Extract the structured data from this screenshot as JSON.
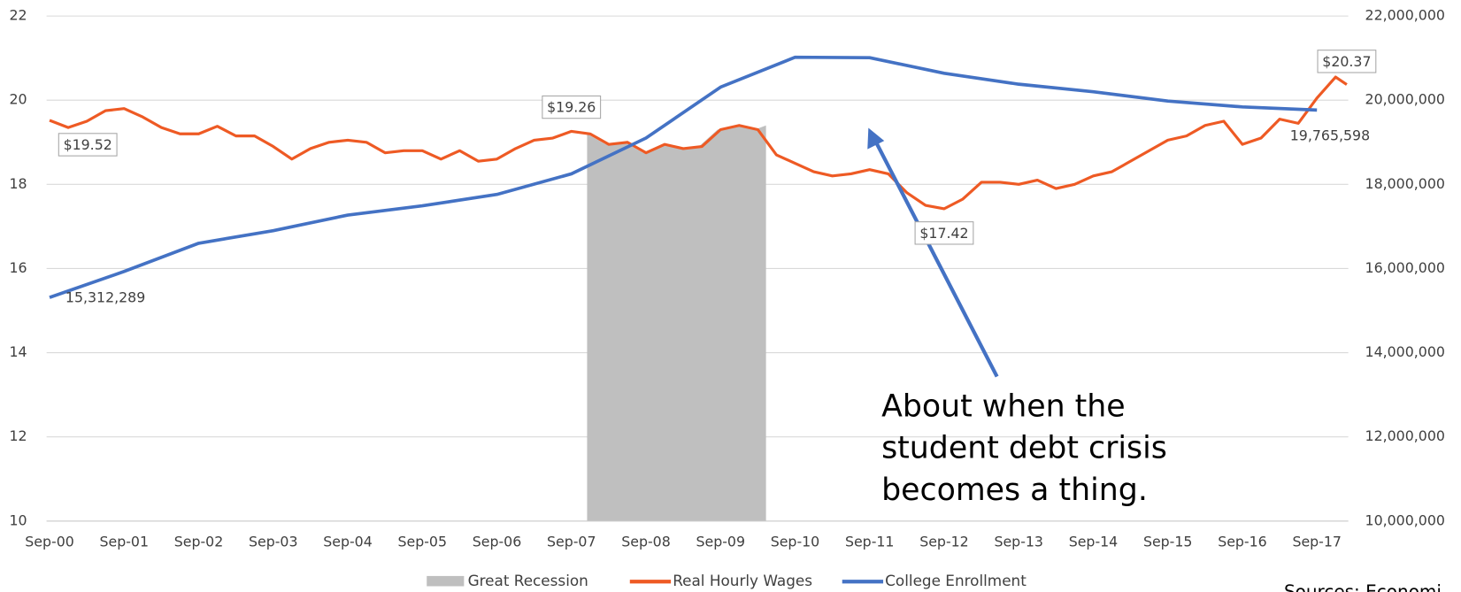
{
  "chart_data": {
    "type": "line",
    "xlim": [
      2000.71,
      2018.17
    ],
    "xticks": [
      {
        "value": 2000.75,
        "label": "Sep-00"
      },
      {
        "value": 2001.75,
        "label": "Sep-01"
      },
      {
        "value": 2002.75,
        "label": "Sep-02"
      },
      {
        "value": 2003.75,
        "label": "Sep-03"
      },
      {
        "value": 2004.75,
        "label": "Sep-04"
      },
      {
        "value": 2005.75,
        "label": "Sep-05"
      },
      {
        "value": 2006.75,
        "label": "Sep-06"
      },
      {
        "value": 2007.75,
        "label": "Sep-07"
      },
      {
        "value": 2008.75,
        "label": "Sep-08"
      },
      {
        "value": 2009.75,
        "label": "Sep-09"
      },
      {
        "value": 2010.75,
        "label": "Sep-10"
      },
      {
        "value": 2011.75,
        "label": "Sep-11"
      },
      {
        "value": 2012.75,
        "label": "Sep-12"
      },
      {
        "value": 2013.75,
        "label": "Sep-13"
      },
      {
        "value": 2014.75,
        "label": "Sep-14"
      },
      {
        "value": 2015.75,
        "label": "Sep-15"
      },
      {
        "value": 2016.75,
        "label": "Sep-16"
      },
      {
        "value": 2017.75,
        "label": "Sep-17"
      }
    ],
    "ylim": [
      10,
      22
    ],
    "yticks": [
      10,
      12,
      14,
      16,
      18,
      20,
      22
    ],
    "y2lim": [
      10000000,
      22000000
    ],
    "y2ticks": [
      {
        "value": 10000000,
        "label": "10,000,000"
      },
      {
        "value": 12000000,
        "label": "12,000,000"
      },
      {
        "value": 14000000,
        "label": "14,000,000"
      },
      {
        "value": 16000000,
        "label": "16,000,000"
      },
      {
        "value": 18000000,
        "label": "18,000,000"
      },
      {
        "value": 20000000,
        "label": "20,000,000"
      },
      {
        "value": 22000000,
        "label": "22,000,000"
      }
    ],
    "grid": true,
    "legend": "bottom",
    "series": [
      {
        "name": "Great Recession",
        "type": "area",
        "color": "#bfbfbf",
        "x": [
          2007.96,
          2008.21,
          2008.46,
          2008.71,
          2008.96,
          2009.21,
          2009.46,
          2009.71,
          2009.96,
          2010.21,
          2010.36
        ],
        "values": [
          19.2,
          18.95,
          19.0,
          18.75,
          18.95,
          18.85,
          18.9,
          19.3,
          19.4,
          19.3,
          19.4
        ]
      },
      {
        "name": "Real Hourly Wages",
        "type": "line",
        "color": "#ee5a24",
        "x": [
          2000.75,
          2001.0,
          2001.25,
          2001.5,
          2001.75,
          2002.0,
          2002.25,
          2002.5,
          2002.75,
          2003.0,
          2003.25,
          2003.5,
          2003.75,
          2004.0,
          2004.25,
          2004.5,
          2004.75,
          2005.0,
          2005.25,
          2005.5,
          2005.75,
          2006.0,
          2006.25,
          2006.5,
          2006.75,
          2007.0,
          2007.25,
          2007.5,
          2007.75,
          2008.0,
          2008.25,
          2008.5,
          2008.75,
          2009.0,
          2009.25,
          2009.5,
          2009.75,
          2010.0,
          2010.25,
          2010.5,
          2010.75,
          2011.0,
          2011.25,
          2011.5,
          2011.75,
          2012.0,
          2012.25,
          2012.5,
          2012.75,
          2013.0,
          2013.25,
          2013.5,
          2013.75,
          2014.0,
          2014.25,
          2014.5,
          2014.75,
          2015.0,
          2015.25,
          2015.5,
          2015.75,
          2016.0,
          2016.25,
          2016.5,
          2016.75,
          2017.0,
          2017.25,
          2017.5,
          2017.75,
          2018.0,
          2018.15
        ],
        "values": [
          19.52,
          19.35,
          19.5,
          19.75,
          19.8,
          19.6,
          19.35,
          19.2,
          19.2,
          19.38,
          19.15,
          19.15,
          18.9,
          18.6,
          18.85,
          19.0,
          19.05,
          19.0,
          18.75,
          18.8,
          18.8,
          18.6,
          18.8,
          18.55,
          18.6,
          18.85,
          19.05,
          19.1,
          19.26,
          19.2,
          18.95,
          19.0,
          18.75,
          18.95,
          18.85,
          18.9,
          19.3,
          19.4,
          19.3,
          18.7,
          18.5,
          18.3,
          18.2,
          18.25,
          18.35,
          18.25,
          17.8,
          17.5,
          17.42,
          17.65,
          18.05,
          18.05,
          18.0,
          18.1,
          17.9,
          18.0,
          18.2,
          18.3,
          18.55,
          18.8,
          19.05,
          19.15,
          19.4,
          19.5,
          18.95,
          19.1,
          19.55,
          19.45,
          20.05,
          20.55,
          20.37
        ],
        "value_labels": [
          "$19.52",
          null,
          null,
          null,
          null,
          null,
          null,
          null,
          null,
          null,
          null,
          null,
          null,
          null,
          null,
          null,
          null,
          null,
          null,
          null,
          null,
          null,
          null,
          null,
          null,
          null,
          null,
          null,
          "$19.26",
          null,
          null,
          null,
          null,
          null,
          null,
          null,
          null,
          null,
          null,
          null,
          null,
          null,
          null,
          null,
          null,
          null,
          null,
          null,
          "$17.42",
          null,
          null,
          null,
          null,
          null,
          null,
          null,
          null,
          null,
          null,
          null,
          null,
          null,
          null,
          null,
          null,
          null,
          null,
          null,
          null,
          null,
          "$20.37"
        ]
      },
      {
        "name": "College Enrollment",
        "type": "line",
        "axis": "y2",
        "color": "#4472c4",
        "x": [
          2000.75,
          2001.75,
          2002.75,
          2003.75,
          2004.75,
          2005.75,
          2006.75,
          2007.75,
          2008.75,
          2009.75,
          2010.75,
          2011.75,
          2012.75,
          2013.75,
          2014.75,
          2015.75,
          2016.75,
          2017.75
        ],
        "values": [
          15312289,
          15930000,
          16600000,
          16900000,
          17270000,
          17490000,
          17760000,
          18250000,
          19100000,
          20310000,
          21020000,
          21010000,
          20640000,
          20380000,
          20200000,
          19980000,
          19840000,
          19765598
        ],
        "value_labels": [
          "15,312,289",
          null,
          null,
          null,
          null,
          null,
          null,
          null,
          null,
          null,
          null,
          null,
          null,
          null,
          null,
          null,
          null,
          "19,765,598"
        ]
      }
    ],
    "annotation": [
      "About when the",
      "student debt crisis",
      "becomes a thing."
    ],
    "source": "Sources: Economi"
  }
}
